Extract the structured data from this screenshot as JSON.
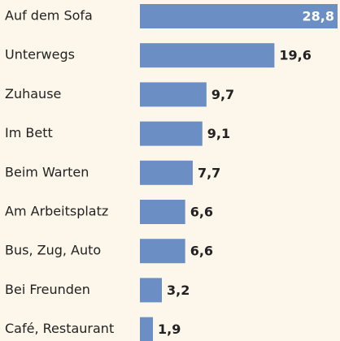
{
  "chart_data": {
    "type": "bar",
    "orientation": "horizontal",
    "categories": [
      "Auf dem Sofa",
      "Unterwegs",
      "Zuhause",
      "Im Bett",
      "Beim Warten",
      "Am Arbeitsplatz",
      "Bus, Zug, Auto",
      "Bei Freunden",
      "Café, Restaurant"
    ],
    "values": [
      28.8,
      19.6,
      9.7,
      9.1,
      7.7,
      6.6,
      6.6,
      3.2,
      1.9
    ],
    "value_labels": [
      "28,8",
      "19,6",
      "9,7",
      "9,1",
      "7,7",
      "6,6",
      "6,6",
      "3,2",
      "1,9"
    ],
    "color": "#6b8fc4"
  }
}
